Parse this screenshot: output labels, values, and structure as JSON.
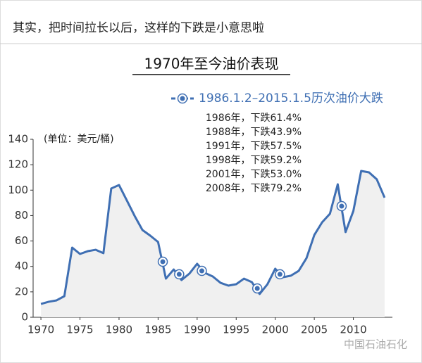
{
  "header": "其实，把时间拉长以后，这样的下跌是小意思啦",
  "watermark": "中国石油石化",
  "chart_data": {
    "type": "line",
    "title": "1970年至今油价表现",
    "y_label": "(单位：美元/桶)",
    "x": [
      1970,
      1971,
      1972,
      1973,
      1974,
      1975,
      1976,
      1977,
      1978,
      1979,
      1980,
      1981,
      1982,
      1983,
      1984,
      1985,
      1986,
      1987,
      1988,
      1989,
      1990,
      1991,
      1992,
      1993,
      1994,
      1995,
      1996,
      1997,
      1998,
      1999,
      2000,
      2001,
      2002,
      2003,
      2004,
      2005,
      2006,
      2007,
      2008,
      2009,
      2010,
      2011,
      2012,
      2013,
      2014
    ],
    "series": [
      {
        "name": null,
        "color": "#3f6fb3",
        "values": [
          10.5,
          12.2,
          13.3,
          16.6,
          54.8,
          49.8,
          52,
          53.1,
          50.4,
          101.3,
          104,
          91.9,
          79.7,
          68.6,
          64.2,
          59.2,
          30.4,
          37.6,
          29.3,
          34.3,
          42.1,
          34.9,
          32.1,
          27.1,
          24.9,
          26,
          30.4,
          27.7,
          18.3,
          26,
          38.2,
          31.5,
          32.7,
          36.5,
          46.5,
          64.7,
          74.7,
          81.4,
          104.6,
          67,
          83.6,
          115.1,
          114,
          108.5,
          94.1
        ]
      },
      {
        "name": "1986.1.2–2015.1.5历次油价大跌",
        "color": "#3f6fb3",
        "x": [
          1985.6,
          1987.7,
          1990.6,
          1997.7,
          2000.6,
          2008.5
        ],
        "values": [
          43.7,
          33.8,
          36.5,
          22.7,
          33.8,
          87.4
        ]
      }
    ],
    "annotations": [
      "1986年，下跌61.4%",
      "1988年，下跌43.9%",
      "1991年，下跌57.5%",
      "1998年，下跌59.2%",
      "2001年，下跌53.0%",
      "2008年，下跌79.2%"
    ],
    "xlim": [
      1969,
      2015
    ],
    "xticks": [
      1970,
      1975,
      1980,
      1985,
      1990,
      1995,
      2000,
      2005,
      2010
    ],
    "ylim": [
      0,
      140
    ],
    "yticks": [
      0,
      20,
      40,
      60,
      80,
      100,
      120,
      140
    ],
    "area_color": "#f0f0f0",
    "grid": false
  }
}
